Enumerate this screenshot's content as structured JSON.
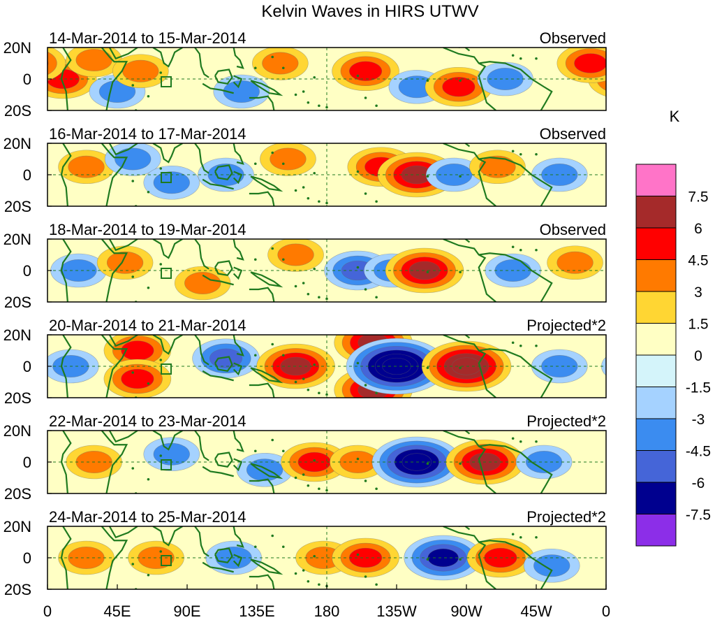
{
  "chart_data": {
    "type": "heatmap",
    "title": "Kelvin Waves in HIRS UTWV",
    "units": "K",
    "x_ticks": [
      "0",
      "45E",
      "90E",
      "135E",
      "180",
      "135W",
      "90W",
      "45W",
      "0"
    ],
    "y_ticks": [
      "20N",
      "0",
      "20S"
    ],
    "colorbar": {
      "label": "K",
      "levels": [
        "7.5",
        "6",
        "4.5",
        "3",
        "1.5",
        "0",
        "-1.5",
        "-3",
        "-4.5",
        "-6",
        "-7.5"
      ],
      "colors": [
        "#ff74c8",
        "#a52a2a",
        "#ff0000",
        "#ff7a00",
        "#ffd633",
        "#ffffc4",
        "#d4f4fa",
        "#a5d2ff",
        "#3b8cf0",
        "#4565d8",
        "#00008f",
        "#8c2ee8"
      ]
    },
    "panels": [
      {
        "dates": "14-Mar-2014 to 15-Mar-2014",
        "kind": "Observed",
        "anomalies": [
          {
            "lon": 10,
            "lat": 0,
            "sign": 1,
            "level": 2
          },
          {
            "lon": 30,
            "lat": 12,
            "sign": 1,
            "level": 1
          },
          {
            "lon": 45,
            "lat": -8,
            "sign": -1,
            "level": 1
          },
          {
            "lon": 60,
            "lat": 5,
            "sign": 1,
            "level": 1
          },
          {
            "lon": 125,
            "lat": -8,
            "sign": -1,
            "level": 1
          },
          {
            "lon": 150,
            "lat": 10,
            "sign": 1,
            "level": 1
          },
          {
            "lon": 205,
            "lat": 5,
            "sign": 1,
            "level": 2
          },
          {
            "lon": 238,
            "lat": -5,
            "sign": -1,
            "level": 1
          },
          {
            "lon": 265,
            "lat": -5,
            "sign": 1,
            "level": 2
          },
          {
            "lon": 295,
            "lat": 0,
            "sign": -1,
            "level": 1
          },
          {
            "lon": 350,
            "lat": 10,
            "sign": 1,
            "level": 2
          }
        ]
      },
      {
        "dates": "16-Mar-2014 to 17-Mar-2014",
        "kind": "Observed",
        "anomalies": [
          {
            "lon": 25,
            "lat": 5,
            "sign": 1,
            "level": 1
          },
          {
            "lon": 55,
            "lat": 10,
            "sign": -1,
            "level": 1
          },
          {
            "lon": 80,
            "lat": -5,
            "sign": -1,
            "level": 1
          },
          {
            "lon": 115,
            "lat": 0,
            "sign": -1,
            "level": 1
          },
          {
            "lon": 155,
            "lat": 10,
            "sign": 1,
            "level": 1
          },
          {
            "lon": 215,
            "lat": 5,
            "sign": 1,
            "level": 2
          },
          {
            "lon": 238,
            "lat": 0,
            "sign": 1,
            "level": 3
          },
          {
            "lon": 262,
            "lat": 0,
            "sign": -1,
            "level": 1
          },
          {
            "lon": 290,
            "lat": 5,
            "sign": 1,
            "level": 1
          },
          {
            "lon": 330,
            "lat": 0,
            "sign": -1,
            "level": 1
          }
        ]
      },
      {
        "dates": "18-Mar-2014 to 19-Mar-2014",
        "kind": "Observed",
        "anomalies": [
          {
            "lon": 20,
            "lat": 0,
            "sign": -1,
            "level": 1
          },
          {
            "lon": 50,
            "lat": 5,
            "sign": 1,
            "level": 1
          },
          {
            "lon": 100,
            "lat": -8,
            "sign": 1,
            "level": 1
          },
          {
            "lon": 160,
            "lat": 10,
            "sign": 1,
            "level": 1
          },
          {
            "lon": 200,
            "lat": 0,
            "sign": -1,
            "level": 2
          },
          {
            "lon": 222,
            "lat": 0,
            "sign": -1,
            "level": 1
          },
          {
            "lon": 243,
            "lat": 0,
            "sign": 1,
            "level": 3
          },
          {
            "lon": 300,
            "lat": 0,
            "sign": -1,
            "level": 1
          },
          {
            "lon": 340,
            "lat": 5,
            "sign": 1,
            "level": 1
          }
        ]
      },
      {
        "dates": "20-Mar-2014 to 21-Mar-2014",
        "kind": "Projected*2",
        "anomalies": [
          {
            "lon": 15,
            "lat": 0,
            "sign": -1,
            "level": 1
          },
          {
            "lon": 58,
            "lat": 10,
            "sign": 1,
            "level": 2
          },
          {
            "lon": 58,
            "lat": -8,
            "sign": 1,
            "level": 2
          },
          {
            "lon": 115,
            "lat": 5,
            "sign": -1,
            "level": 2
          },
          {
            "lon": 160,
            "lat": 0,
            "sign": 1,
            "level": 3
          },
          {
            "lon": 210,
            "lat": 15,
            "sign": 1,
            "level": 3
          },
          {
            "lon": 210,
            "lat": -15,
            "sign": 1,
            "level": 3
          },
          {
            "lon": 225,
            "lat": 0,
            "sign": -1,
            "level": 5
          },
          {
            "lon": 270,
            "lat": 0,
            "sign": 1,
            "level": 4
          },
          {
            "lon": 330,
            "lat": 0,
            "sign": -1,
            "level": 1
          }
        ]
      },
      {
        "dates": "22-Mar-2014 to 23-Mar-2014",
        "kind": "Projected*2",
        "anomalies": [
          {
            "lon": 30,
            "lat": 0,
            "sign": 1,
            "level": 1
          },
          {
            "lon": 80,
            "lat": 5,
            "sign": -1,
            "level": 1
          },
          {
            "lon": 140,
            "lat": -5,
            "sign": -1,
            "level": 1
          },
          {
            "lon": 172,
            "lat": 0,
            "sign": 1,
            "level": 2
          },
          {
            "lon": 200,
            "lat": 0,
            "sign": 1,
            "level": 1
          },
          {
            "lon": 238,
            "lat": 0,
            "sign": -1,
            "level": 4
          },
          {
            "lon": 282,
            "lat": 0,
            "sign": 1,
            "level": 3
          },
          {
            "lon": 320,
            "lat": 0,
            "sign": -1,
            "level": 1
          }
        ]
      },
      {
        "dates": "24-Mar-2014 to 25-Mar-2014",
        "kind": "Projected*2",
        "anomalies": [
          {
            "lon": 25,
            "lat": 0,
            "sign": 1,
            "level": 1
          },
          {
            "lon": 70,
            "lat": 0,
            "sign": 1,
            "level": 1
          },
          {
            "lon": 120,
            "lat": 0,
            "sign": -1,
            "level": 1
          },
          {
            "lon": 178,
            "lat": 0,
            "sign": 1,
            "level": 1
          },
          {
            "lon": 205,
            "lat": 0,
            "sign": 1,
            "level": 2
          },
          {
            "lon": 255,
            "lat": 0,
            "sign": -1,
            "level": 3
          },
          {
            "lon": 292,
            "lat": 0,
            "sign": 1,
            "level": 2
          },
          {
            "lon": 325,
            "lat": -5,
            "sign": -1,
            "level": 1
          }
        ]
      }
    ]
  }
}
